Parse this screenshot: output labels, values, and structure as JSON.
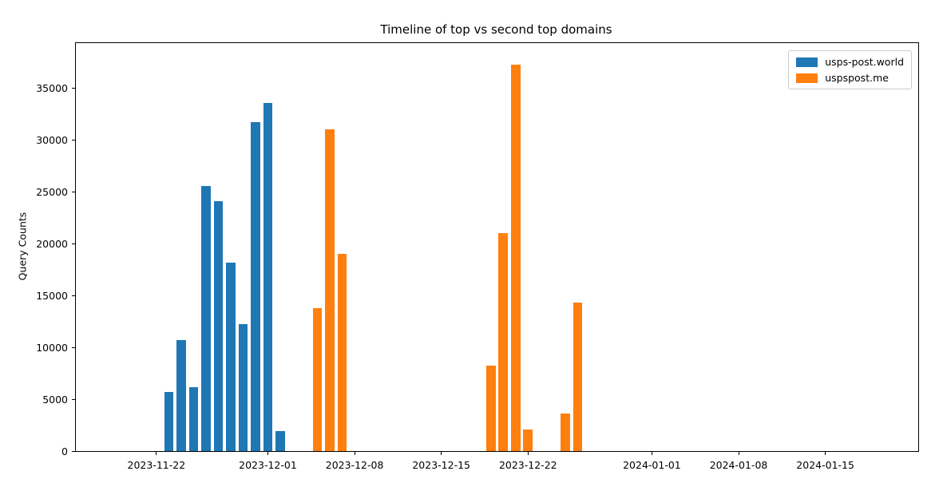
{
  "chart_data": {
    "type": "bar",
    "title": "Timeline of top vs second top domains",
    "xlabel": "",
    "ylabel": "Query Counts",
    "grid": false,
    "legend_position": "upper right",
    "background_color": "#ffffff",
    "xlim_dates": [
      "2023-11-15T12:00:00Z",
      "2024-01-22T12:00:00Z"
    ],
    "ylim": [
      0,
      39300
    ],
    "y_ticks": [
      {
        "value": 0,
        "label": "0"
      },
      {
        "value": 5000,
        "label": "5000"
      },
      {
        "value": 10000,
        "label": "10000"
      },
      {
        "value": 15000,
        "label": "15000"
      },
      {
        "value": 20000,
        "label": "20000"
      },
      {
        "value": 25000,
        "label": "25000"
      },
      {
        "value": 30000,
        "label": "30000"
      },
      {
        "value": 35000,
        "label": "35000"
      }
    ],
    "x_ticks": [
      {
        "date": "2023-11-22",
        "label": "2023-11-22"
      },
      {
        "date": "2023-12-01",
        "label": "2023-12-01"
      },
      {
        "date": "2023-12-08",
        "label": "2023-12-08"
      },
      {
        "date": "2023-12-15",
        "label": "2023-12-15"
      },
      {
        "date": "2023-12-22",
        "label": "2023-12-22"
      },
      {
        "date": "2024-01-01",
        "label": "2024-01-01"
      },
      {
        "date": "2024-01-08",
        "label": "2024-01-08"
      },
      {
        "date": "2024-01-15",
        "label": "2024-01-15"
      }
    ],
    "bar_width_days": 0.75,
    "series": [
      {
        "name": "usps-post.world",
        "color": "#1f77b4",
        "points": [
          {
            "date": "2023-11-23",
            "value": 5700
          },
          {
            "date": "2023-11-24",
            "value": 10700
          },
          {
            "date": "2023-11-25",
            "value": 6150
          },
          {
            "date": "2023-11-26",
            "value": 25500
          },
          {
            "date": "2023-11-27",
            "value": 24050
          },
          {
            "date": "2023-11-28",
            "value": 18150
          },
          {
            "date": "2023-11-29",
            "value": 12250
          },
          {
            "date": "2023-11-30",
            "value": 31650
          },
          {
            "date": "2023-12-01",
            "value": 33500
          },
          {
            "date": "2023-12-02",
            "value": 1950
          }
        ]
      },
      {
        "name": "uspspost.me",
        "color": "#ff7f0e",
        "points": [
          {
            "date": "2023-12-05",
            "value": 13800
          },
          {
            "date": "2023-12-06",
            "value": 31000
          },
          {
            "date": "2023-12-07",
            "value": 19000
          },
          {
            "date": "2023-12-19",
            "value": 8200
          },
          {
            "date": "2023-12-20",
            "value": 21000
          },
          {
            "date": "2023-12-21",
            "value": 37200
          },
          {
            "date": "2023-12-22",
            "value": 2100
          },
          {
            "date": "2023-12-25",
            "value": 3600
          },
          {
            "date": "2023-12-26",
            "value": 14300
          }
        ]
      }
    ]
  }
}
